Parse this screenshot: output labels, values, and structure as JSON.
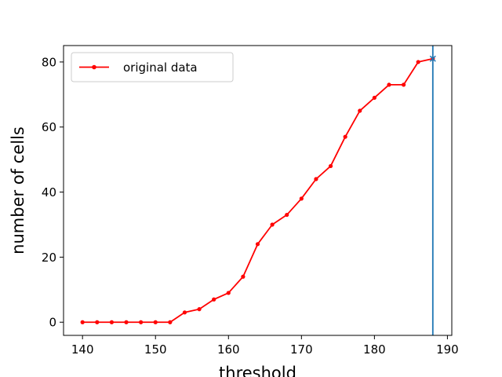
{
  "chart_data": {
    "type": "line",
    "title": "",
    "xlabel": "threshold",
    "ylabel": "number of cells",
    "xlim": [
      137.4,
      190.6
    ],
    "ylim": [
      -4.05,
      85.05
    ],
    "xticks": [
      140,
      150,
      160,
      170,
      180,
      190
    ],
    "yticks": [
      0,
      20,
      40,
      60,
      80
    ],
    "grid": false,
    "legend_position": "upper-left",
    "series": [
      {
        "name": "original data",
        "color": "#ff0000",
        "marker": "dot",
        "x": [
          140,
          142,
          144,
          146,
          148,
          150,
          152,
          154,
          156,
          158,
          160,
          162,
          164,
          166,
          168,
          170,
          172,
          174,
          176,
          178,
          180,
          182,
          184,
          186,
          188
        ],
        "y": [
          0,
          0,
          0,
          0,
          0,
          0,
          0,
          3,
          4,
          7,
          9,
          14,
          24,
          30,
          33,
          38,
          44,
          48,
          57,
          65,
          69,
          73,
          73,
          80,
          81
        ]
      }
    ],
    "extra_point": {
      "x": 188,
      "y": 81,
      "marker": "x",
      "color": "#1f77b4"
    },
    "vline": {
      "x": 188,
      "color": "#1f77b4"
    }
  }
}
